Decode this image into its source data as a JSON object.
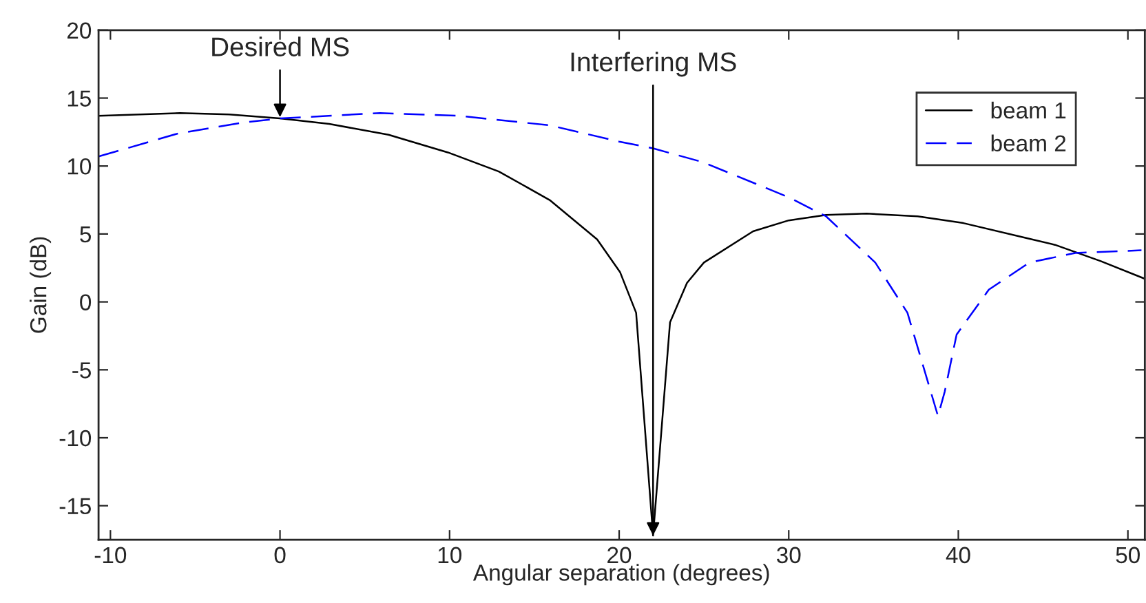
{
  "chart_data": {
    "type": "line",
    "xlabel": "Angular separation (degrees)",
    "ylabel": "Gain (dB)",
    "xlim": [
      -10.7,
      51
    ],
    "ylim": [
      -17.5,
      20
    ],
    "xticks": [
      -10,
      0,
      10,
      20,
      30,
      40,
      50
    ],
    "yticks": [
      -15,
      -10,
      -5,
      0,
      5,
      10,
      15,
      20
    ],
    "grid": false,
    "legend": "top right",
    "series": [
      {
        "name": "beam 1",
        "color": "#000000",
        "line_style": "solid",
        "x": [
          -10.7,
          -5.9,
          -3,
          0,
          2.9,
          6.4,
          9.9,
          12.9,
          15.9,
          18.7,
          20.05,
          21,
          22,
          23,
          24,
          25,
          27.9,
          30,
          32.2,
          34.6,
          37.6,
          40.3,
          44,
          45.7,
          48.4,
          51
        ],
        "values": [
          13.7,
          13.9,
          13.8,
          13.5,
          13.1,
          12.3,
          11,
          9.6,
          7.5,
          4.6,
          2.2,
          -0.8,
          -17.2,
          -1.5,
          1.4,
          2.9,
          5.2,
          6,
          6.4,
          6.5,
          6.3,
          5.8,
          4.7,
          4.2,
          3,
          1.7
        ]
      },
      {
        "name": "beam 2",
        "color": "#0000ff",
        "line_style": "dashed",
        "x": [
          -10.7,
          -6,
          -2.2,
          0,
          5.9,
          10.5,
          15.9,
          20,
          22,
          24.9,
          30,
          32.2,
          35.1,
          37,
          38.8,
          39.2,
          39.9,
          41.8,
          44.2,
          46.9,
          50.8
        ],
        "values": [
          10.7,
          12.4,
          13.2,
          13.5,
          13.9,
          13.7,
          13,
          11.8,
          11.3,
          10.3,
          7.7,
          6.3,
          2.9,
          -0.8,
          -8.4,
          -6.6,
          -2.4,
          0.9,
          2.9,
          3.6,
          3.8
        ]
      }
    ],
    "annotations": [
      {
        "text": "Desired MS",
        "x": 0,
        "y": 13.6
      },
      {
        "text": "Interfering MS",
        "x": 22,
        "y": -17.2
      }
    ]
  }
}
